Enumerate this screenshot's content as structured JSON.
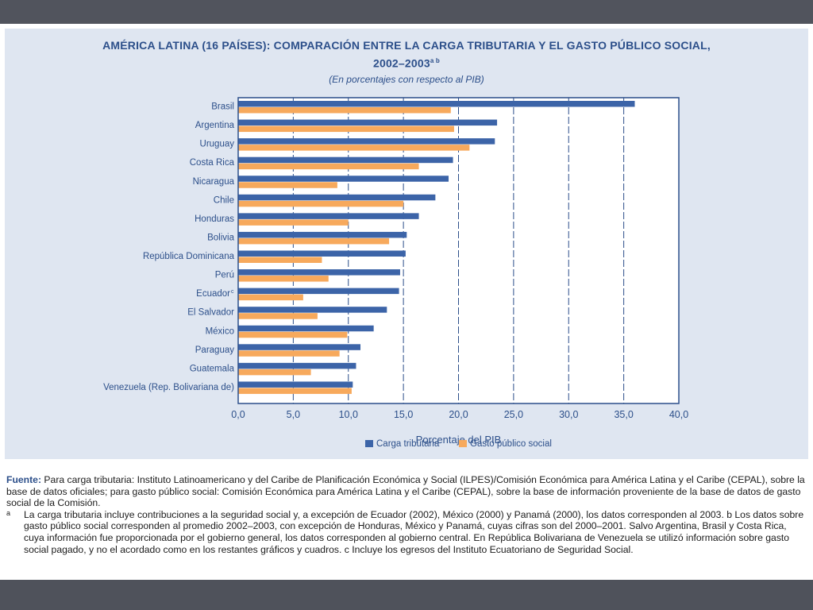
{
  "header": {
    "title_line1": "AMÉRICA LATINA (16 PAÍSES): COMPARACIÓN ENTRE LA CARGA TRIBUTARIA Y EL GASTO PÚBLICO SOCIAL,",
    "title_line2": "2002–2003",
    "title_sup": "a b",
    "subtitle": "(En porcentajes con respecto al PIB)"
  },
  "chart_data": {
    "type": "bar",
    "orientation": "horizontal",
    "categories": [
      "Brasil",
      "Argentina",
      "Uruguay",
      "Costa Rica",
      "Nicaragua",
      "Chile",
      "Honduras",
      "Bolivia",
      "República Dominicana",
      "Perú",
      "Ecuador",
      "El Salvador",
      "México",
      "Paraguay",
      "Guatemala",
      "Venezuela (Rep. Bolivariana de)"
    ],
    "category_sups": [
      "",
      "",
      "",
      "",
      "",
      "",
      "",
      "",
      "",
      "",
      "c",
      "",
      "",
      "",
      "",
      ""
    ],
    "series": [
      {
        "name": "Carga tributaria",
        "color": "#3c64a8",
        "values": [
          36.0,
          23.5,
          23.3,
          19.5,
          19.1,
          17.9,
          16.4,
          15.3,
          15.2,
          14.7,
          14.6,
          13.5,
          12.3,
          11.1,
          10.7,
          10.4
        ]
      },
      {
        "name": "Gasto público social",
        "color": "#f7a95c",
        "values": [
          19.3,
          19.6,
          21.0,
          16.4,
          9.0,
          15.0,
          10.0,
          13.7,
          7.6,
          8.2,
          5.9,
          7.2,
          9.9,
          9.2,
          6.6,
          10.3
        ]
      }
    ],
    "xlim": [
      0,
      40
    ],
    "xticks": [
      "0,0",
      "5,0",
      "10,0",
      "15,0",
      "20,0",
      "25,0",
      "30,0",
      "35,0",
      "40,0"
    ],
    "xlabel": "Porcentaje del PIB",
    "grid": "vertical dashed",
    "legend_position": "bottom-right"
  },
  "notes": {
    "source_label": "Fuente:",
    "source_text": "Para carga tributaria: Instituto Latinoamericano y del Caribe de Planificación Económica y Social (ILPES)/Comisión Económica para América Latina y el Caribe (CEPAL), sobre la base de datos oficiales; para gasto público social: Comisión Económica para América Latina y el Caribe (CEPAL), sobre la base de información proveniente de la base de datos de gasto social de la Comisión.",
    "footnote_mark": "a",
    "footnote_text": "La carga tributaria incluye contribuciones a la seguridad social y, a excepción de Ecuador (2002), México (2000) y Panamá (2000), los datos corresponden al 2003. b Los datos sobre gasto público social corresponden al promedio 2002–2003, con excepción de Honduras, México y Panamá, cuyas cifras son del 2000–2001. Salvo Argentina, Brasil y Costa Rica, cuya información fue proporcionada por el gobierno general, los datos corresponden al gobierno central. En República Bolivariana de Venezuela se utilizó información sobre gasto social pagado, y no el acordado como en los restantes gráficos y cuadros. c Incluye los egresos del Instituto Ecuatoriano de Seguridad Social."
  }
}
